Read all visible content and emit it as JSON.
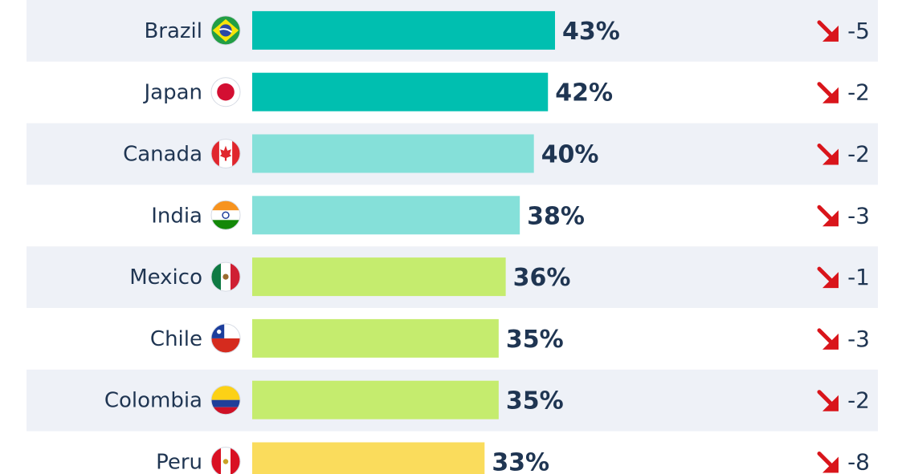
{
  "chart_data": {
    "type": "bar",
    "orientation": "horizontal",
    "categories": [
      "Brazil",
      "Japan",
      "Canada",
      "India",
      "Mexico",
      "Chile",
      "Colombia",
      "Peru"
    ],
    "values": [
      43,
      42,
      40,
      38,
      36,
      35,
      35,
      33
    ],
    "value_labels": [
      "43%",
      "42%",
      "40%",
      "38%",
      "36%",
      "35%",
      "35%",
      "33%"
    ],
    "changes": [
      "-5",
      "-2",
      "-2",
      "-3",
      "-1",
      "-3",
      "-2",
      "-8"
    ],
    "change_direction": "down",
    "flag_icons": [
      "brazil-flag-icon",
      "japan-flag-icon",
      "canada-flag-icon",
      "india-flag-icon",
      "mexico-flag-icon",
      "chile-flag-icon",
      "colombia-flag-icon",
      "peru-flag-icon"
    ],
    "bar_colors": [
      "#00bfb0",
      "#00bfb0",
      "#85e0d9",
      "#85e0d9",
      "#c5ec6e",
      "#c5ec6e",
      "#c5ec6e",
      "#fadc5c"
    ],
    "change_arrow_color": "#d9151b",
    "row_band_color": "#eef1f7",
    "text_color": "#1f3552",
    "xlim": [
      0,
      43
    ]
  }
}
